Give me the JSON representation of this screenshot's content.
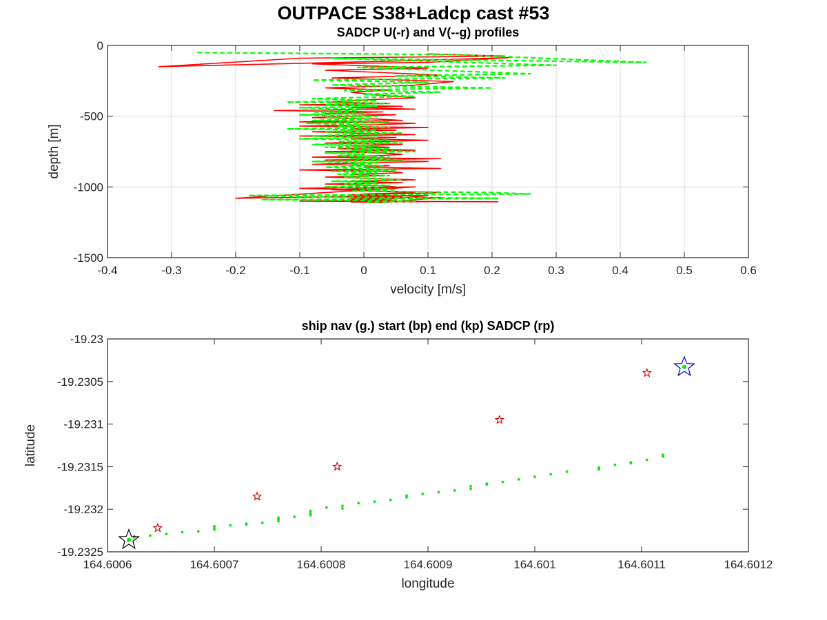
{
  "figure": {
    "title": "OUTPACE S38+Ladcp cast #53"
  },
  "colors": {
    "u_profile": "#ff0000",
    "v_profile": "#00ff00",
    "ship_nav": "#00ee00",
    "start_marker": "#0000cc",
    "end_marker": "#000000",
    "sadcp_marker": "#cc0000",
    "grid": "#d9d9d9"
  },
  "chart_data": [
    {
      "type": "line",
      "title": "SADCP U(-r) and V(--g) profiles",
      "xlabel": "velocity [m/s]",
      "ylabel": "depth [m]",
      "xlim": [
        -0.4,
        0.6
      ],
      "ylim": [
        -1500,
        0
      ],
      "xticks": [
        -0.4,
        -0.3,
        -0.2,
        -0.1,
        0,
        0.1,
        0.2,
        0.3,
        0.4,
        0.5,
        0.6
      ],
      "xtick_labels": [
        "-0.4",
        "-0.3",
        "-0.2",
        "-0.1",
        "0",
        "0.1",
        "0.2",
        "0.3",
        "0.4",
        "0.5",
        "0.6"
      ],
      "yticks": [
        0,
        -500,
        -1000,
        -1500
      ],
      "ytick_labels": [
        "0",
        "-500",
        "-1000",
        "-1500"
      ],
      "grid": true,
      "series": [
        {
          "key": "U",
          "style": "solid",
          "x": [
            0.1,
            0.22,
            -0.1,
            -0.32,
            0.05,
            0.23,
            0.1,
            -0.08,
            0.1,
            -0.06,
            0.02,
            0.12,
            -0.05,
            0.14,
            0.08,
            -0.06,
            0.04,
            -0.02,
            0.02,
            0.08,
            0.0,
            -0.05,
            0.04,
            -0.1,
            0.06,
            -0.02,
            0.08,
            -0.14,
            0.03,
            -0.06,
            0.05,
            -0.02,
            -0.08,
            0.02,
            0.06,
            -0.1,
            0.08,
            0.02,
            -0.1,
            0.1,
            -0.02,
            0.05,
            -0.08,
            -0.01,
            0.08,
            -0.1,
            0.05,
            -0.02,
            0.1,
            0.02,
            -0.06,
            0.06,
            -0.02,
            0.04,
            -0.04,
            0.08,
            -0.06,
            0.03,
            0.06,
            0.02,
            -0.08,
            0.12,
            -0.06,
            0.1,
            0.0,
            -0.08,
            0.04,
            0.0,
            0.12,
            -0.1,
            0.04,
            0.06,
            -0.02,
            0.03,
            -0.06,
            0.01,
            0.08,
            -0.02,
            0.06,
            -0.06,
            0.02,
            0.05,
            0.01,
            -0.05,
            0.03,
            0.12,
            0.04,
            -0.02,
            0.02,
            0.06,
            -0.04,
            0.08,
            -0.02,
            0.03,
            -0.02,
            0.05,
            -0.01,
            0.02,
            0.1,
            0.03,
            -0.02,
            0.03,
            0.12,
            -0.06,
            0.04,
            0.0,
            0.08,
            0.02,
            -0.01,
            -0.1,
            0.08,
            -0.2,
            0.1,
            0.03,
            0.02,
            -0.1,
            0.21
          ],
          "y": [
            -60,
            -75,
            -90,
            -150,
            -110,
            -85,
            -120,
            -130,
            -160,
            -175,
            -190,
            -210,
            -230,
            -255,
            -280,
            -300,
            -315,
            -330,
            -350,
            -370,
            -385,
            -400,
            -410,
            -420,
            -430,
            -440,
            -450,
            -460,
            -470,
            -480,
            -490,
            -500,
            -510,
            -520,
            -530,
            -540,
            -550,
            -560,
            -570,
            -580,
            -590,
            -600,
            -610,
            -620,
            -630,
            -640,
            -650,
            -660,
            -670,
            -680,
            -690,
            -700,
            -710,
            -720,
            -730,
            -740,
            -750,
            -760,
            -770,
            -780,
            -790,
            -800,
            -810,
            -820,
            -830,
            -840,
            -850,
            -860,
            -870,
            -880,
            -890,
            -900,
            -910,
            -920,
            -930,
            -940,
            -950,
            -960,
            -970,
            -980,
            -990,
            -1000,
            -1010,
            -1020,
            -1030,
            -1040,
            -1050,
            -1055,
            -1060,
            -1065,
            -1070,
            -1075,
            -1080,
            -1085,
            -1090,
            -1095,
            -1100,
            -1102,
            -1104,
            -1106,
            -1108,
            -1110,
            -1075,
            -1070,
            -1060,
            -1050,
            -1040,
            -1030,
            -1020,
            -1010,
            -1000,
            -1080,
            -1060,
            -1090,
            -1095,
            -1100,
            -1105
          ]
        },
        {
          "key": "V",
          "style": "dashed",
          "x": [
            -0.26,
            0.14,
            0.44,
            -0.05,
            0.3,
            -0.01,
            0.26,
            0.05,
            0.22,
            -0.08,
            0.1,
            -0.05,
            0.2,
            -0.03,
            0.12,
            0.0,
            0.08,
            -0.08,
            0.02,
            -0.12,
            0.04,
            -0.06,
            0.02,
            -0.1,
            0.0,
            -0.02,
            -0.08,
            0.0,
            -0.1,
            0.02,
            -0.06,
            0.01,
            -0.08,
            0.04,
            -0.09,
            0.0,
            -0.04,
            0.04,
            -0.12,
            0.02,
            -0.06,
            0.06,
            -0.02,
            -0.08,
            0.02,
            -0.1,
            0.04,
            -0.04,
            0.06,
            -0.08,
            0.02,
            -0.06,
            0.04,
            -0.02,
            0.08,
            -0.06,
            0.0,
            -0.04,
            0.04,
            -0.02,
            0.06,
            -0.08,
            0.02,
            -0.02,
            0.03,
            -0.06,
            0.0,
            0.05,
            -0.05,
            0.02,
            -0.04,
            0.04,
            -0.03,
            0.0,
            0.06,
            -0.05,
            0.02,
            -0.03,
            0.04,
            -0.06,
            0.02,
            0.05,
            -0.02,
            0.2,
            0.26,
            -0.18,
            -0.09,
            0.21,
            -0.16,
            0.08,
            0.0
          ],
          "y": [
            -50,
            -65,
            -120,
            -90,
            -140,
            -155,
            -200,
            -215,
            -230,
            -245,
            -260,
            -280,
            -300,
            -315,
            -330,
            -345,
            -360,
            -375,
            -390,
            -400,
            -410,
            -420,
            -430,
            -440,
            -450,
            -460,
            -470,
            -480,
            -490,
            -500,
            -510,
            -520,
            -530,
            -540,
            -550,
            -560,
            -570,
            -580,
            -590,
            -600,
            -610,
            -620,
            -630,
            -640,
            -650,
            -660,
            -670,
            -680,
            -690,
            -700,
            -710,
            -720,
            -730,
            -740,
            -750,
            -760,
            -770,
            -780,
            -790,
            -800,
            -810,
            -820,
            -830,
            -840,
            -850,
            -860,
            -870,
            -880,
            -890,
            -900,
            -910,
            -920,
            -930,
            -940,
            -950,
            -960,
            -970,
            -980,
            -990,
            -1000,
            -1010,
            -1020,
            -1030,
            -1040,
            -1050,
            -1060,
            -1070,
            -1080,
            -1090,
            -1100,
            -1110
          ]
        }
      ]
    },
    {
      "type": "scatter",
      "title": "ship nav (g.) start (bp) end (kp) SADCP (rp)",
      "xlabel": "longitude",
      "ylabel": "latitude",
      "xlim": [
        164.6006,
        164.6012
      ],
      "ylim": [
        -19.2325,
        -19.23
      ],
      "xticks": [
        164.6006,
        164.6007,
        164.6008,
        164.6009,
        164.601,
        164.6011,
        164.6012
      ],
      "xtick_labels": [
        "164.6006",
        "164.6007",
        "164.6008",
        "164.6009",
        "164.601",
        "164.6011",
        "164.6012"
      ],
      "yticks": [
        -19.23,
        -19.2305,
        -19.231,
        -19.2315,
        -19.232,
        -19.2325
      ],
      "ytick_labels": [
        "-19.23",
        "-19.2305",
        "-19.231",
        "-19.2315",
        "-19.232",
        "-19.2325"
      ],
      "grid": false,
      "nav_points": {
        "x": [
          164.600625,
          164.60064,
          164.600655,
          164.60067,
          164.600685,
          164.6007,
          164.6007,
          164.6007,
          164.600715,
          164.60073,
          164.600745,
          164.60076,
          164.60076,
          164.60076,
          164.600775,
          164.60079,
          164.60079,
          164.60079,
          164.600805,
          164.60082,
          164.600835,
          164.60085,
          164.600865,
          164.60088,
          164.60088,
          164.600895,
          164.60091,
          164.600925,
          164.60094,
          164.60094,
          164.600955,
          164.60097,
          164.600985,
          164.601,
          164.601015,
          164.60103,
          164.60106,
          164.60106,
          164.601075,
          164.60109,
          164.601105,
          164.60112,
          164.60112,
          164.600625,
          164.60073,
          164.60082,
          164.600955,
          164.60109
        ],
        "y": [
          -19.23232,
          -19.23231,
          -19.23229,
          -19.23227,
          -19.23226,
          -19.23224,
          -19.23222,
          -19.2322,
          -19.23219,
          -19.23218,
          -19.23216,
          -19.23214,
          -19.23212,
          -19.2321,
          -19.23209,
          -19.23207,
          -19.23205,
          -19.23202,
          -19.23198,
          -19.23196,
          -19.23193,
          -19.23191,
          -19.23189,
          -19.23186,
          -19.23184,
          -19.23182,
          -19.2318,
          -19.23178,
          -19.23176,
          -19.23173,
          -19.2317,
          -19.23168,
          -19.23165,
          -19.23162,
          -19.23159,
          -19.23156,
          -19.23153,
          -19.23151,
          -19.23148,
          -19.23145,
          -19.23142,
          -19.23138,
          -19.23136,
          -19.23233,
          -19.23217,
          -19.23199,
          -19.23171,
          -19.23146
        ]
      },
      "sadcp_points": {
        "x": [
          164.600647,
          164.60074,
          164.600815,
          164.600967,
          164.601105
        ],
        "y": [
          -19.23222,
          -19.23185,
          -19.2315,
          -19.23095,
          -19.2304
        ]
      },
      "start_point": {
        "x": 164.60114,
        "y": -19.23033
      },
      "end_point": {
        "x": 164.60062,
        "y": -19.23236
      }
    }
  ]
}
